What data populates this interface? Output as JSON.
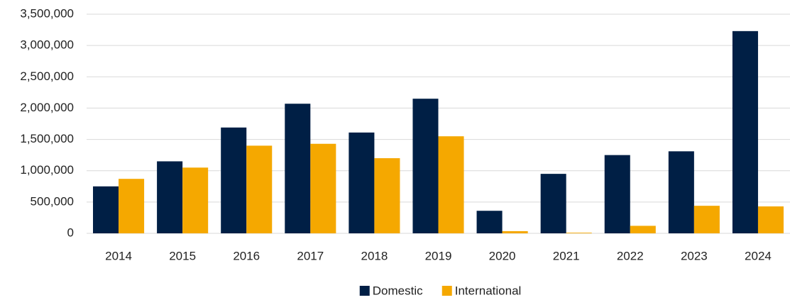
{
  "chart_data": {
    "type": "bar",
    "categories": [
      "2014",
      "2015",
      "2016",
      "2017",
      "2018",
      "2019",
      "2020",
      "2021",
      "2022",
      "2023",
      "2024"
    ],
    "series": [
      {
        "name": "Domestic",
        "color": "#001f45",
        "values": [
          750000,
          1150000,
          1690000,
          2070000,
          1610000,
          2150000,
          360000,
          950000,
          1250000,
          1310000,
          3230000
        ]
      },
      {
        "name": "International",
        "color": "#f5a800",
        "values": [
          870000,
          1050000,
          1400000,
          1430000,
          1200000,
          1550000,
          35000,
          10000,
          120000,
          440000,
          430000
        ]
      }
    ],
    "ylim": [
      0,
      3500000
    ],
    "yticks": [
      0,
      {
        "value": 500000,
        "label": "500,000"
      },
      {
        "value": 1000000,
        "label": "1,000,000"
      },
      {
        "value": 1500000,
        "label": "1,500,000"
      },
      {
        "value": 2000000,
        "label": "2,000,000"
      },
      {
        "value": 2500000,
        "label": "2,500,000"
      },
      {
        "value": 3000000,
        "label": "3,000,000"
      },
      {
        "value": 3500000,
        "label": "3,500,000"
      }
    ],
    "grid": true,
    "legend": "bottom"
  }
}
